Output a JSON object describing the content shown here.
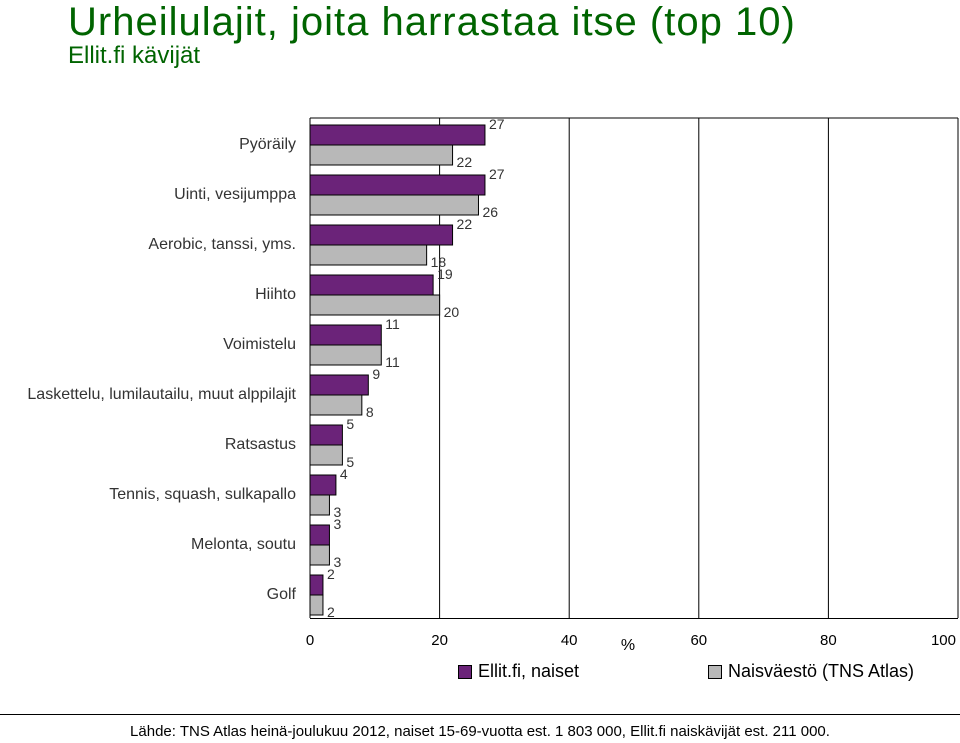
{
  "title": "Urheilulajit, joita harrastaa itse (top 10)",
  "subtitle": "Ellit.fi kävijät",
  "source": "Lähde: TNS Atlas heinä-joulukuu 2012, naiset 15-69-vuotta est. 1 803 000, Ellit.fi naiskävijät est. 211 000.",
  "colors": {
    "series1": "#6b2379",
    "series2": "#b8b8b8"
  },
  "chart_data": {
    "type": "bar",
    "orientation": "horizontal",
    "categories": [
      "Pyöräily",
      "Uinti, vesijumppa",
      "Aerobic, tanssi, yms.",
      "Hiihto",
      "Voimistelu",
      "Laskettelu, lumilautailu, muut alppilajit",
      "Ratsastus",
      "Tennis, squash, sulkapallo",
      "Melonta, soutu",
      "Golf"
    ],
    "series": [
      {
        "name": "Ellit.fi, naiset",
        "values": [
          27,
          27,
          22,
          19,
          11,
          9,
          5,
          4,
          3,
          2
        ]
      },
      {
        "name": "Naisväestö (TNS Atlas)",
        "values": [
          22,
          26,
          18,
          20,
          11,
          8,
          5,
          3,
          3,
          2
        ]
      }
    ],
    "xlabel": "%",
    "xlim": [
      0,
      100
    ],
    "xticks": [
      0,
      20,
      40,
      60,
      80,
      100
    ],
    "grid": true,
    "legend": "bottom"
  }
}
